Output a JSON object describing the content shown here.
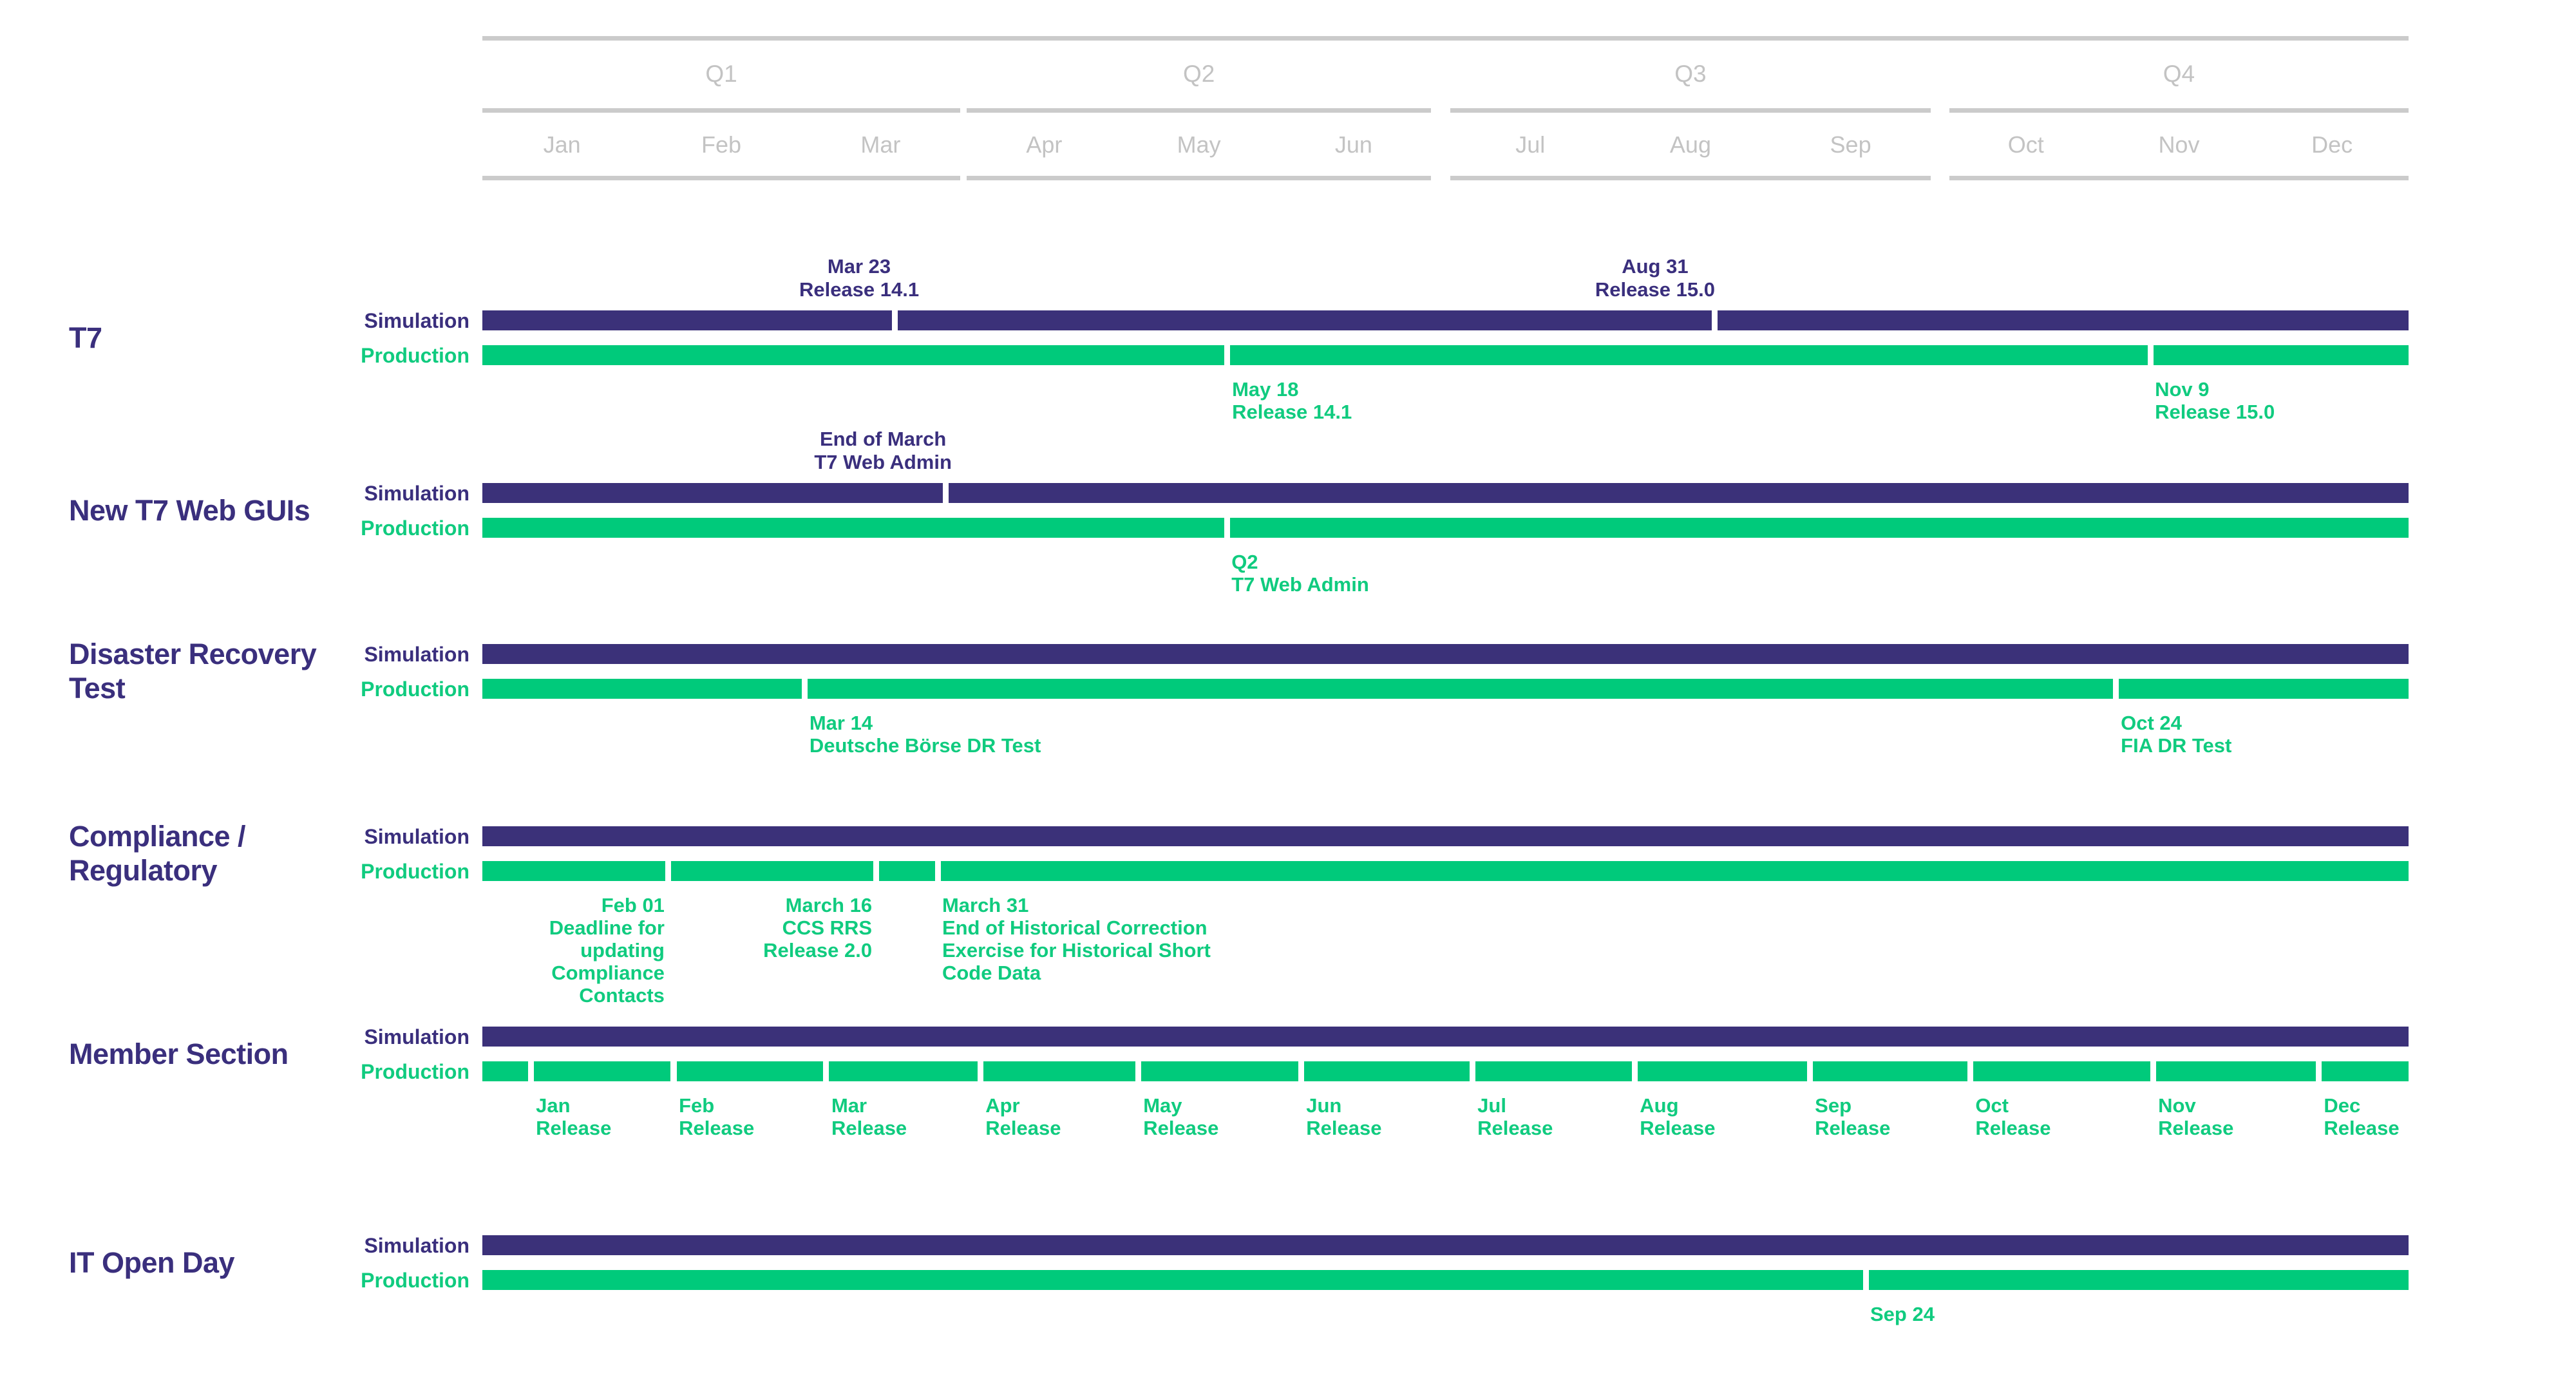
{
  "colors": {
    "simulation_bar": "#3b3179",
    "production_bar": "#00ca7b",
    "navy_text": "#3a2f7d",
    "green_text": "#10cb7f",
    "axis_line": "#cbcbcb",
    "axis_text": "#c3c3c3"
  },
  "chart_data": {
    "type": "bar",
    "subtype": "gantt-roadmap-timeline",
    "orientation": "horizontal",
    "x_axis": {
      "quarters": [
        {
          "label": "Q1",
          "months": [
            "Jan",
            "Feb",
            "Mar"
          ],
          "span": [
            0.0,
            0.2481
          ]
        },
        {
          "label": "Q2",
          "months": [
            "Apr",
            "May",
            "Jun"
          ],
          "span": [
            0.2515,
            0.4925
          ]
        },
        {
          "label": "Q3",
          "months": [
            "Jul",
            "Aug",
            "Sep"
          ],
          "span": [
            0.5025,
            0.7519
          ]
        },
        {
          "label": "Q4",
          "months": [
            "Oct",
            "Nov",
            "Dec"
          ],
          "span": [
            0.7616,
            1.0
          ]
        }
      ]
    },
    "environments": [
      "Simulation",
      "Production"
    ],
    "rows": [
      {
        "name": "t7",
        "label_lines": [
          "T7"
        ],
        "simulation": {
          "gaps": [
            0.2143,
            0.6396
          ]
        },
        "production": {
          "gaps": [
            0.3868,
            0.866
          ]
        },
        "labels_above": [
          {
            "center": 0.1956,
            "lines": [
              "Mar 23",
              "Release 14.1"
            ]
          },
          {
            "center": 0.6088,
            "lines": [
              "Aug 31",
              "Release 15.0"
            ]
          }
        ],
        "labels_below": [
          {
            "x": 0.3892,
            "align": "left",
            "lines": [
              "May 18",
              "Release 14.1"
            ]
          },
          {
            "x": 0.8683,
            "align": "left",
            "lines": [
              "Nov 9",
              "Release 15.0"
            ]
          }
        ]
      },
      {
        "name": "new-t7-web-guis",
        "label_lines": [
          "New T7 Web GUIs"
        ],
        "simulation": {
          "gaps": [
            0.2404
          ]
        },
        "production": {
          "gaps": [
            0.3865
          ]
        },
        "labels_above": [
          {
            "center": 0.208,
            "lines": [
              "End of March",
              "T7 Web Admin"
            ]
          }
        ],
        "labels_below": [
          {
            "x": 0.3889,
            "align": "left",
            "lines": [
              "Q2",
              "T7 Web Admin"
            ]
          }
        ]
      },
      {
        "name": "disaster-recovery-test",
        "label_lines": [
          "Disaster Recovery",
          "Test"
        ],
        "simulation": {
          "gaps": []
        },
        "production": {
          "gaps": [
            0.1675,
            0.8482
          ]
        },
        "labels_above": [],
        "labels_below": [
          {
            "x": 0.1698,
            "align": "left",
            "lines": [
              "Mar 14",
              "Deutsche Börse DR Test"
            ]
          },
          {
            "x": 0.8506,
            "align": "left",
            "lines": [
              "Oct 24",
              "FIA DR Test"
            ]
          }
        ]
      },
      {
        "name": "compliance-regulatory",
        "label_lines": [
          "Compliance /",
          "Regulatory"
        ],
        "simulation": {
          "gaps": []
        },
        "production": {
          "gaps": [
            0.0966,
            0.2043,
            0.2364
          ]
        },
        "labels_above": [],
        "labels_below": [
          {
            "x": 0.0946,
            "align": "right",
            "lines": [
              "Feb 01",
              "Deadline for",
              "updating",
              "Compliance",
              "Contacts"
            ]
          },
          {
            "x": 0.2023,
            "align": "right",
            "lines": [
              "March 16",
              "CCS RRS",
              "Release 2.0"
            ]
          },
          {
            "x": 0.2387,
            "align": "left",
            "lines": [
              "March 31",
              "End of Historical Correction",
              "Exercise for Historical Short",
              "Code Data"
            ]
          }
        ]
      },
      {
        "name": "member-section",
        "label_lines": [
          "Member Section"
        ],
        "simulation": {
          "gaps": []
        },
        "production": {
          "gaps": [
            0.0251,
            0.0993,
            0.1785,
            0.2585,
            0.3404,
            0.425,
            0.5139,
            0.5982,
            0.6891,
            0.7724,
            0.8673,
            0.9533
          ]
        },
        "labels_above": [],
        "labels_below": [
          {
            "x": 0.0278,
            "align": "left",
            "lines": [
              "Jan",
              "Release"
            ]
          },
          {
            "x": 0.102,
            "align": "left",
            "lines": [
              "Feb",
              "Release"
            ]
          },
          {
            "x": 0.1812,
            "align": "left",
            "lines": [
              "Mar",
              "Release"
            ]
          },
          {
            "x": 0.2612,
            "align": "left",
            "lines": [
              "Apr",
              "Release"
            ]
          },
          {
            "x": 0.3431,
            "align": "left",
            "lines": [
              "May",
              "Release"
            ]
          },
          {
            "x": 0.4277,
            "align": "left",
            "lines": [
              "Jun",
              "Release"
            ]
          },
          {
            "x": 0.5166,
            "align": "left",
            "lines": [
              "Jul",
              "Release"
            ]
          },
          {
            "x": 0.6009,
            "align": "left",
            "lines": [
              "Aug",
              "Release"
            ]
          },
          {
            "x": 0.6918,
            "align": "left",
            "lines": [
              "Sep",
              "Release"
            ]
          },
          {
            "x": 0.7751,
            "align": "left",
            "lines": [
              "Oct",
              "Release"
            ]
          },
          {
            "x": 0.87,
            "align": "left",
            "lines": [
              "Nov",
              "Release"
            ]
          },
          {
            "x": 0.956,
            "align": "left",
            "lines": [
              "Dec",
              "Release"
            ]
          }
        ]
      },
      {
        "name": "it-open-day",
        "label_lines": [
          "IT Open Day"
        ],
        "simulation": {
          "gaps": []
        },
        "production": {
          "gaps": [
            0.7182
          ]
        },
        "labels_above": [],
        "labels_below": [
          {
            "x": 0.7205,
            "align": "left",
            "lines": [
              "Sep 24"
            ]
          }
        ]
      }
    ]
  }
}
